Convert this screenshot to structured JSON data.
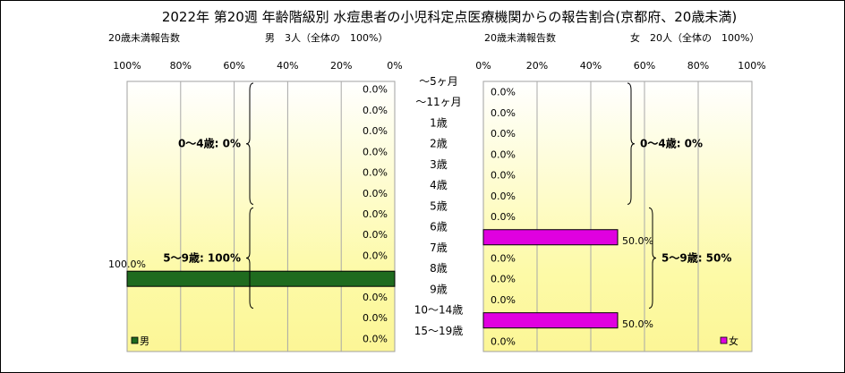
{
  "chart_data": {
    "type": "bar",
    "title": "2022年 第20週 年齢階級別 水痘患者の小児科定点医療機関からの報告割合(京都府、20歳未満)",
    "categories": [
      "～5ヶ月",
      "～11ヶ月",
      "1歳",
      "2歳",
      "3歳",
      "4歳",
      "5歳",
      "6歳",
      "7歳",
      "8歳",
      "9歳",
      "10～14歳",
      "15～19歳"
    ],
    "axis_ticks": [
      "0%",
      "20%",
      "40%",
      "60%",
      "80%",
      "100%"
    ],
    "xlim": [
      0,
      100
    ],
    "grid": true,
    "series": [
      {
        "name": "男",
        "side": "left",
        "color": "#1f6b1f",
        "header_label": "20歳未満報告数",
        "header_summary": "男　3人（全体の　100%）",
        "values": [
          0,
          0,
          0,
          0,
          0,
          0,
          0,
          0,
          0,
          100,
          0,
          0,
          0
        ],
        "labels": [
          "0.0%",
          "0.0%",
          "0.0%",
          "0.0%",
          "0.0%",
          "0.0%",
          "0.0%",
          "0.0%",
          "0.0%",
          "100.0%",
          "0.0%",
          "0.0%",
          "0.0%"
        ],
        "legend": "男",
        "legend_position": "bottom-left",
        "groups": [
          {
            "label": "0～4歳: 0%",
            "from": 0,
            "to": 5
          },
          {
            "label": "5～9歳: 100%",
            "from": 6,
            "to": 10
          }
        ]
      },
      {
        "name": "女",
        "side": "right",
        "color": "#e000e0",
        "header_label": "20歳未満報告数",
        "header_summary": "女　20人（全体の　100%）",
        "values": [
          0,
          0,
          0,
          0,
          0,
          0,
          0,
          50,
          0,
          0,
          0,
          50,
          0
        ],
        "labels": [
          "0.0%",
          "0.0%",
          "0.0%",
          "0.0%",
          "0.0%",
          "0.0%",
          "0.0%",
          "50.0%",
          "0.0%",
          "0.0%",
          "0.0%",
          "50.0%",
          "0.0%"
        ],
        "legend": "女",
        "legend_position": "bottom-right",
        "groups": [
          {
            "label": "0～4歳: 0%",
            "from": 0,
            "to": 5
          },
          {
            "label": "5～9歳: 50%",
            "from": 6,
            "to": 10
          }
        ]
      }
    ]
  }
}
